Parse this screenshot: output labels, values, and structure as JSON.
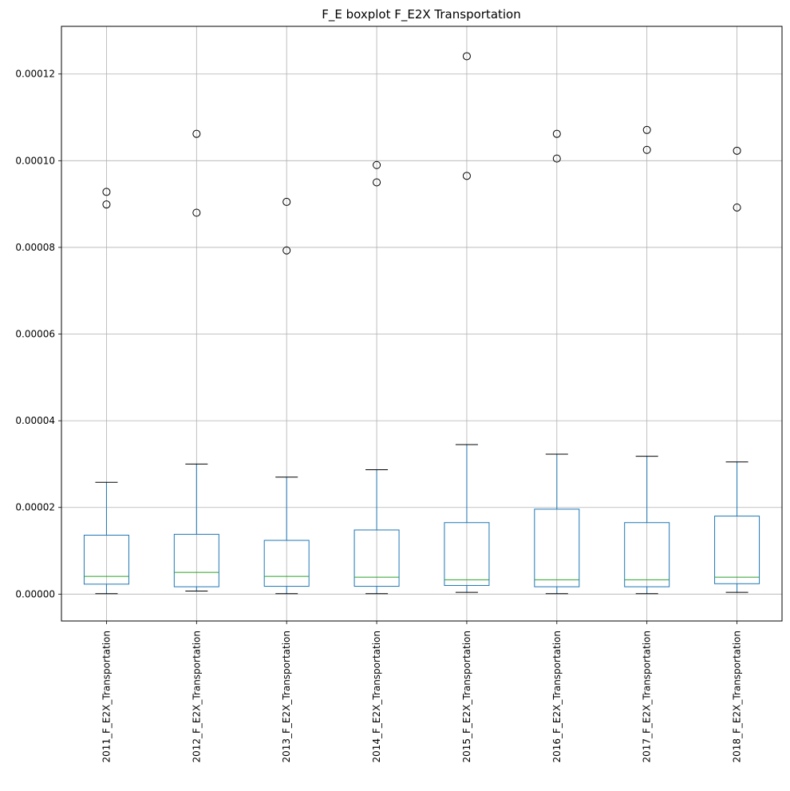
{
  "chart_data": {
    "type": "boxplot",
    "title": "F_E boxplot F_E2X Transportation",
    "xlabel": "",
    "ylabel": "",
    "ylim": [
      -6.2e-06,
      0.000131
    ],
    "yticks": [
      0,
      2e-05,
      4e-05,
      6e-05,
      8e-05,
      0.0001,
      0.00012
    ],
    "ytick_labels": [
      "0.00000",
      "0.00002",
      "0.00004",
      "0.00006",
      "0.00008",
      "0.00010",
      "0.00012"
    ],
    "grid": true,
    "categories": [
      "2011_F_E2X_Transportation",
      "2012_F_E2X_Transportation",
      "2013_F_E2X_Transportation",
      "2014_F_E2X_Transportation",
      "2015_F_E2X_Transportation",
      "2016_F_E2X_Transportation",
      "2017_F_E2X_Transportation",
      "2018_F_E2X_Transportation"
    ],
    "boxes": [
      {
        "whislo": 1e-07,
        "q1": 2.3e-06,
        "med": 4.1e-06,
        "q3": 1.36e-05,
        "whishi": 2.58e-05,
        "fliers": [
          9.28e-05,
          8.99e-05
        ]
      },
      {
        "whislo": 7e-07,
        "q1": 1.7e-06,
        "med": 5e-06,
        "q3": 1.38e-05,
        "whishi": 3e-05,
        "fliers": [
          0.0001062,
          8.8e-05
        ]
      },
      {
        "whislo": 1e-07,
        "q1": 1.8e-06,
        "med": 4.1e-06,
        "q3": 1.24e-05,
        "whishi": 2.7e-05,
        "fliers": [
          9.05e-05,
          7.93e-05
        ]
      },
      {
        "whislo": 1e-07,
        "q1": 1.8e-06,
        "med": 3.9e-06,
        "q3": 1.48e-05,
        "whishi": 2.87e-05,
        "fliers": [
          9.9e-05,
          9.5e-05
        ]
      },
      {
        "whislo": 4e-07,
        "q1": 2e-06,
        "med": 3.3e-06,
        "q3": 1.65e-05,
        "whishi": 3.45e-05,
        "fliers": [
          0.0001241,
          9.65e-05
        ]
      },
      {
        "whislo": 1e-07,
        "q1": 1.7e-06,
        "med": 3.3e-06,
        "q3": 1.96e-05,
        "whishi": 3.23e-05,
        "fliers": [
          0.0001062,
          0.0001005
        ]
      },
      {
        "whislo": 1e-07,
        "q1": 1.7e-06,
        "med": 3.3e-06,
        "q3": 1.65e-05,
        "whishi": 3.18e-05,
        "fliers": [
          0.0001071,
          0.0001025
        ]
      },
      {
        "whislo": 4e-07,
        "q1": 2.4e-06,
        "med": 3.9e-06,
        "q3": 1.8e-05,
        "whishi": 3.05e-05,
        "fliers": [
          0.0001023,
          8.92e-05
        ]
      }
    ],
    "colors": {
      "box": "#1f77b4",
      "median": "#2ca02c",
      "whisker": "#1f77b4",
      "cap": "#000000",
      "flier": "#000000",
      "grid": "#b0b0b0"
    }
  }
}
